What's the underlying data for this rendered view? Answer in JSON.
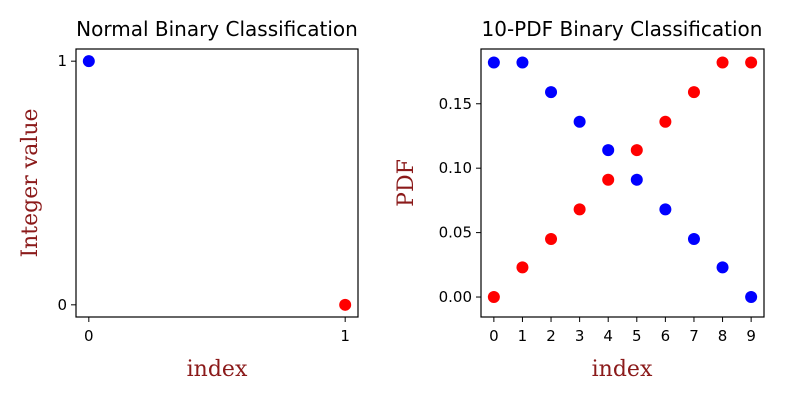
{
  "chart_data": [
    {
      "type": "scatter",
      "title": "Normal Binary Classification",
      "xlabel": "index",
      "ylabel": "Integer value",
      "xlim": [
        -0.05,
        1.05
      ],
      "ylim": [
        -0.05,
        1.05
      ],
      "xticks": [
        0,
        1
      ],
      "xtick_labels": [
        "0",
        "1"
      ],
      "yticks": [
        0,
        1
      ],
      "ytick_labels": [
        "0",
        "1"
      ],
      "series": [
        {
          "color": "#0000ff",
          "x": [
            0
          ],
          "y": [
            1
          ]
        },
        {
          "color": "#ff0000",
          "x": [
            1
          ],
          "y": [
            0
          ]
        }
      ],
      "grid": false,
      "label_color": "#8b1a1a"
    },
    {
      "type": "scatter",
      "title": "10-PDF Binary Classification",
      "xlabel": "index",
      "ylabel": "PDF",
      "xlim": [
        -0.45,
        9.45
      ],
      "ylim": [
        -0.0155,
        0.1925
      ],
      "xticks": [
        0,
        1,
        2,
        3,
        4,
        5,
        6,
        7,
        8,
        9
      ],
      "xtick_labels": [
        "0",
        "1",
        "2",
        "3",
        "4",
        "5",
        "6",
        "7",
        "8",
        "9"
      ],
      "yticks": [
        0.0,
        0.05,
        0.1,
        0.15
      ],
      "ytick_labels": [
        "0.00",
        "0.05",
        "0.10",
        "0.15"
      ],
      "series": [
        {
          "color": "#0000ff",
          "x": [
            0,
            1,
            2,
            3,
            4,
            5,
            6,
            7,
            8,
            9
          ],
          "y": [
            0.182,
            0.182,
            0.159,
            0.136,
            0.114,
            0.091,
            0.068,
            0.045,
            0.023,
            0.0
          ]
        },
        {
          "color": "#ff0000",
          "x": [
            0,
            1,
            2,
            3,
            4,
            5,
            6,
            7,
            8,
            9
          ],
          "y": [
            0.0,
            0.023,
            0.045,
            0.068,
            0.091,
            0.114,
            0.136,
            0.159,
            0.182,
            0.182
          ]
        }
      ],
      "grid": false,
      "label_color": "#8b1a1a"
    }
  ]
}
